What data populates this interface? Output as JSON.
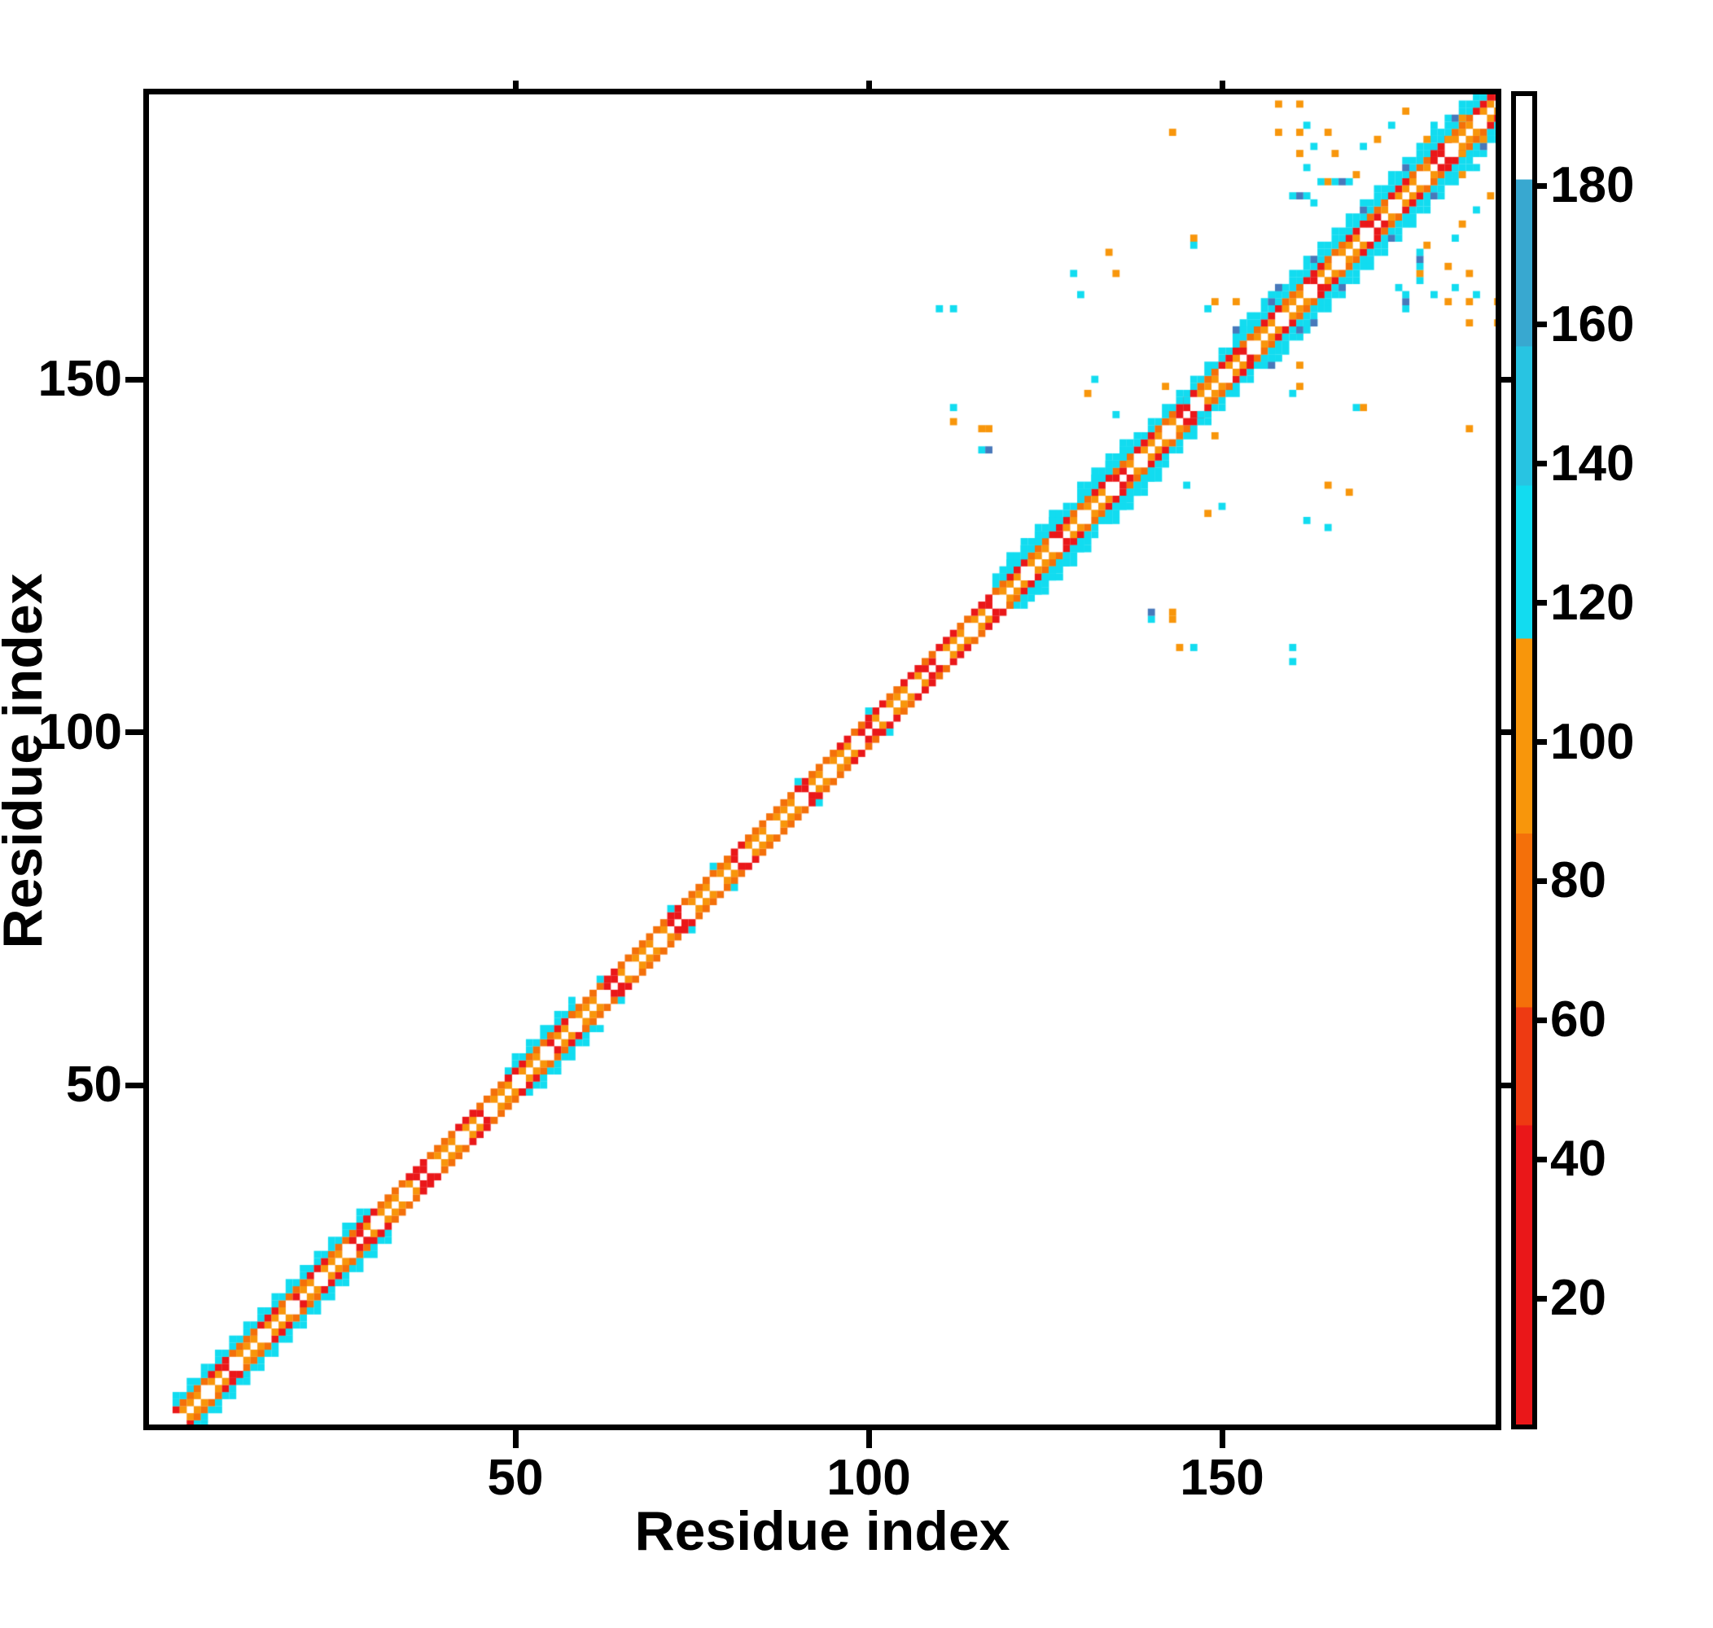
{
  "chart_data": {
    "type": "heatmap",
    "title": "",
    "xlabel": "Residue index",
    "ylabel": "Residue index",
    "x_ticks": [
      50,
      100,
      150
    ],
    "y_ticks": [
      50,
      100,
      150
    ],
    "axis_range": [
      0,
      192
    ],
    "grid": false,
    "colorbar": {
      "orientation": "vertical",
      "ticks": [
        20,
        40,
        60,
        80,
        100,
        120,
        140,
        160,
        180
      ],
      "value_range": [
        2,
        193
      ],
      "colormap_stops": [
        {
          "max": 30,
          "color": "#ea1719"
        },
        {
          "max": 45,
          "color": "#ee3a12"
        },
        {
          "max": 62,
          "color": "#f4700a"
        },
        {
          "max": 87,
          "color": "#f8960b"
        },
        {
          "max": 115,
          "color": "#12dcf0"
        },
        {
          "max": 137,
          "color": "#28c4e2"
        },
        {
          "max": 157,
          "color": "#38a8d0"
        },
        {
          "max": 181,
          "color": "#4878ba"
        },
        {
          "max": 999,
          "color": "#ffffff"
        }
      ]
    },
    "matrix": {
      "residue_range": [
        2,
        190
      ],
      "symmetric": true,
      "diagonal": "white",
      "near_values": {
        "off1_orange": 68,
        "off1_red": 24,
        "off2_orange": 52,
        "off2_red": 24,
        "fringe_cyan": 110,
        "fringe_blue": 176
      },
      "bands": [
        {
          "from": 2,
          "to": 29,
          "fringe": 4
        },
        {
          "from": 29,
          "to": 49,
          "fringe": 0
        },
        {
          "from": 49,
          "to": 58,
          "fringe": 4
        },
        {
          "from": 58,
          "to": 96,
          "fringe": 0,
          "red_mod": [
            9,
            2
          ]
        },
        {
          "from": 96,
          "to": 118,
          "fringe": 0,
          "red_mod": [
            5,
            3
          ]
        },
        {
          "from": 118,
          "to": 152,
          "fringe": 4,
          "red_mod": [
            6,
            3
          ]
        },
        {
          "from": 119,
          "to": 127,
          "fringe": 5,
          "fringe_only": true
        },
        {
          "from": 130,
          "to": 137,
          "fringe": 5,
          "fringe_only": true
        },
        {
          "from": 152,
          "to": 190,
          "fringe": 5,
          "red_mod": [
            6,
            3
          ],
          "blue_rows": [
            157,
            163,
            170,
            176,
            183,
            188
          ]
        }
      ],
      "speckles": [
        [
          62,
          65,
          110
        ],
        [
          72,
          75,
          110
        ],
        [
          78,
          81,
          110
        ],
        [
          90,
          93,
          110
        ],
        [
          100,
          103,
          110
        ],
        [
          110,
          160,
          110
        ],
        [
          112,
          160,
          110
        ],
        [
          112,
          144,
          65
        ],
        [
          112,
          146,
          110
        ],
        [
          116,
          140,
          110
        ],
        [
          117,
          140,
          176
        ],
        [
          116,
          143,
          65
        ],
        [
          117,
          143,
          65
        ],
        [
          129,
          165,
          110
        ],
        [
          135,
          165,
          65
        ],
        [
          130,
          162,
          110
        ],
        [
          134,
          168,
          65
        ],
        [
          131,
          148,
          65
        ],
        [
          132,
          150,
          110
        ],
        [
          135,
          145,
          110
        ],
        [
          142,
          149,
          65
        ],
        [
          145,
          147,
          110
        ],
        [
          143,
          185,
          65
        ],
        [
          146,
          170,
          65
        ],
        [
          146,
          169,
          110
        ],
        [
          148,
          160,
          110
        ],
        [
          149,
          161,
          65
        ],
        [
          152,
          161,
          65
        ],
        [
          152,
          157,
          176
        ],
        [
          153,
          157,
          110
        ],
        [
          153,
          158,
          110
        ],
        [
          157,
          162,
          110
        ],
        [
          158,
          163,
          176
        ],
        [
          158,
          185,
          65
        ],
        [
          158,
          189,
          65
        ],
        [
          161,
          189,
          65
        ],
        [
          161,
          185,
          65
        ],
        [
          162,
          186,
          110
        ],
        [
          165,
          185,
          65
        ],
        [
          161,
          182,
          65
        ],
        [
          163,
          183,
          110
        ],
        [
          160,
          176,
          110
        ],
        [
          161,
          176,
          176
        ],
        [
          162,
          176,
          110
        ],
        [
          163,
          175,
          110
        ],
        [
          164,
          178,
          110
        ],
        [
          165,
          178,
          65
        ],
        [
          166,
          178,
          110
        ],
        [
          167,
          178,
          176
        ],
        [
          168,
          178,
          110
        ],
        [
          169,
          179,
          65
        ],
        [
          162,
          180,
          110
        ],
        [
          166,
          182,
          65
        ],
        [
          170,
          183,
          110
        ],
        [
          172,
          184,
          65
        ],
        [
          174,
          186,
          110
        ],
        [
          176,
          188,
          65
        ],
        [
          179,
          184,
          65
        ],
        [
          180,
          186,
          110
        ],
        [
          182,
          184,
          65
        ],
        [
          184,
          187,
          65
        ]
      ]
    }
  }
}
